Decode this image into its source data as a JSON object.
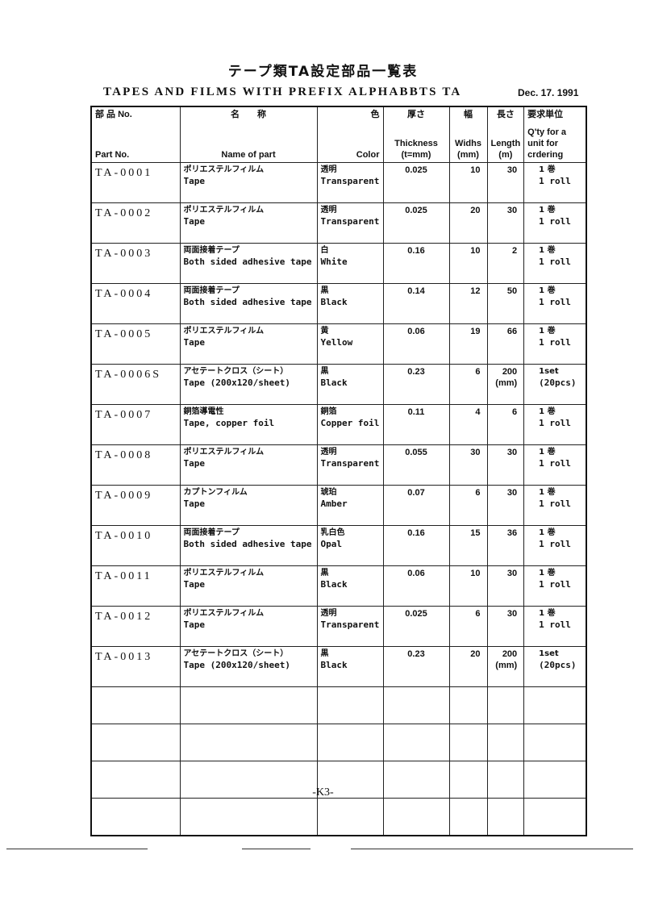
{
  "title_jp": "テープ類TA設定部品一覧表",
  "title_en": "TAPES AND FILMS WITH PREFIX ALPHABBTS TA",
  "date": "Dec. 17. 1991",
  "headers": [
    {
      "jp": "部 品 No.",
      "en": "Part No."
    },
    {
      "jp": "名　　称",
      "en": "Name of part"
    },
    {
      "jp": "色",
      "en": "Color"
    },
    {
      "jp": "厚さ",
      "en": "Thickness (t=mm)"
    },
    {
      "jp": "幅",
      "en": "Widhs (mm)"
    },
    {
      "jp": "長さ",
      "en": "Length (m)"
    },
    {
      "jp": "要求単位",
      "en": "Q'ty for a unit for crdering"
    }
  ],
  "rows": [
    {
      "part": "TA-0001",
      "name_jp": "ポリエステルフィルム",
      "name_en": "Tape",
      "color_jp": "透明",
      "color_en": "Transparent",
      "thickness": "0.025",
      "width": "10",
      "length": "30",
      "qty_jp": "1 巻",
      "qty_en": "1 roll"
    },
    {
      "part": "TA-0002",
      "name_jp": "ポリエステルフィルム",
      "name_en": "Tape",
      "color_jp": "透明",
      "color_en": "Transparent",
      "thickness": "0.025",
      "width": "20",
      "length": "30",
      "qty_jp": "1 巻",
      "qty_en": "1 roll"
    },
    {
      "part": "TA-0003",
      "name_jp": "両面接着テープ",
      "name_en": "Both sided adhesive tape",
      "color_jp": "白",
      "color_en": "White",
      "thickness": "0.16",
      "width": "10",
      "length": "2",
      "qty_jp": "1 巻",
      "qty_en": "1 roll"
    },
    {
      "part": "TA-0004",
      "name_jp": "両面接着テープ",
      "name_en": "Both sided adhesive tape",
      "color_jp": "黒",
      "color_en": "Black",
      "thickness": "0.14",
      "width": "12",
      "length": "50",
      "qty_jp": "1 巻",
      "qty_en": "1 roll"
    },
    {
      "part": "TA-0005",
      "name_jp": "ポリエステルフィルム",
      "name_en": "Tape",
      "color_jp": "黄",
      "color_en": "Yellow",
      "thickness": "0.06",
      "width": "19",
      "length": "66",
      "qty_jp": "1 巻",
      "qty_en": "1 roll"
    },
    {
      "part": "TA-0006S",
      "name_jp": "アセテートクロス（シート）",
      "name_en": "Tape (200x120/sheet)",
      "color_jp": "黒",
      "color_en": "Black",
      "thickness": "0.23",
      "width": "6",
      "length": "200",
      "length_unit": "(mm)",
      "qty_jp": "1set",
      "qty_en": "(20pcs)"
    },
    {
      "part": "TA-0007",
      "name_jp": "銅箔導電性",
      "name_en": "Tape, copper foil",
      "color_jp": "銅箔",
      "color_en": "Copper foil",
      "thickness": "0.11",
      "width": "4",
      "length": "6",
      "qty_jp": "1 巻",
      "qty_en": "1 roll"
    },
    {
      "part": "TA-0008",
      "name_jp": "ポリエステルフィルム",
      "name_en": "Tape",
      "color_jp": "透明",
      "color_en": "Transparent",
      "thickness": "0.055",
      "width": "30",
      "length": "30",
      "qty_jp": "1 巻",
      "qty_en": "1 roll"
    },
    {
      "part": "TA-0009",
      "name_jp": "カプトンフィルム",
      "name_en": "Tape",
      "color_jp": "琥珀",
      "color_en": "Amber",
      "thickness": "0.07",
      "width": "6",
      "length": "30",
      "qty_jp": "1 巻",
      "qty_en": "1 roll"
    },
    {
      "part": "TA-0010",
      "name_jp": "両面接着テープ",
      "name_en": "Both sided adhesive tape",
      "color_jp": "乳白色",
      "color_en": "Opal",
      "thickness": "0.16",
      "width": "15",
      "length": "36",
      "qty_jp": "1 巻",
      "qty_en": "1 roll"
    },
    {
      "part": "TA-0011",
      "name_jp": "ポリエステルフィルム",
      "name_en": "Tape",
      "color_jp": "黒",
      "color_en": "Black",
      "thickness": "0.06",
      "width": "10",
      "length": "30",
      "qty_jp": "1 巻",
      "qty_en": "1 roll"
    },
    {
      "part": "TA-0012",
      "name_jp": "ポリエステルフィルム",
      "name_en": "Tape",
      "color_jp": "透明",
      "color_en": "Transparent",
      "thickness": "0.025",
      "width": "6",
      "length": "30",
      "qty_jp": "1 巻",
      "qty_en": "1 roll"
    },
    {
      "part": "TA-0013",
      "name_jp": "アセテートクロス（シート）",
      "name_en": "Tape (200x120/sheet)",
      "color_jp": "黒",
      "color_en": "Black",
      "thickness": "0.23",
      "width": "20",
      "length": "200",
      "length_unit": "(mm)",
      "qty_jp": "1set",
      "qty_en": "(20pcs)"
    }
  ],
  "empty_rows": 4,
  "page_number": "-K3-"
}
